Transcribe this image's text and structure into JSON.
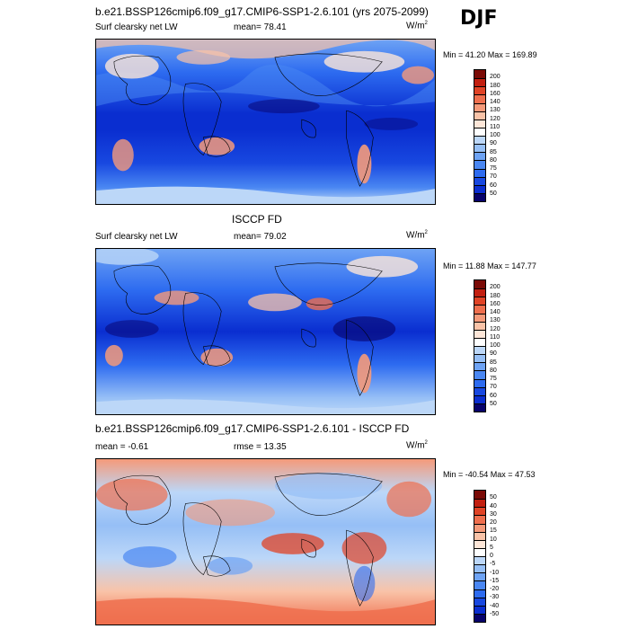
{
  "season": "DJF",
  "colors": {
    "abs_scale": [
      "#07026b",
      "#0a2ed0",
      "#1848e0",
      "#2d6bf0",
      "#4a87f2",
      "#6ea3f4",
      "#96bff6",
      "#bcd7f8",
      "#ffffff",
      "#fde6d8",
      "#f9c3a8",
      "#f59a7a",
      "#ef6f4e",
      "#e04326",
      "#c21f10",
      "#7a0a06"
    ],
    "diff_scale": [
      "#07026b",
      "#0a2ed0",
      "#1848e0",
      "#2d6bf0",
      "#4a87f2",
      "#6ea3f4",
      "#96bff6",
      "#bcd7f8",
      "#ffffff",
      "#fde6d8",
      "#f9c3a8",
      "#f59a7a",
      "#ef6f4e",
      "#e04326",
      "#c21f10",
      "#7a0a06"
    ]
  },
  "panels": [
    {
      "title": "b.e21.BSSP126cmip6.f09_g17.CMIP6-SSP1-2.6.101 (yrs 2075-2099)",
      "left": "Surf clearsky net LW",
      "center": "mean=  78.41",
      "units": "W/m",
      "units_sup": "2",
      "minmax": "Min =  41.20 Max = 169.89",
      "ticks": [
        "200",
        "180",
        "160",
        "140",
        "130",
        "120",
        "110",
        "100",
        "90",
        "85",
        "80",
        "75",
        "70",
        "60",
        "50"
      ],
      "map_style": "abs_a"
    },
    {
      "title": "ISCCP FD",
      "left": "Surf clearsky net LW",
      "center": "mean=  79.02",
      "units": "W/m",
      "units_sup": "2",
      "minmax": "Min =  11.88 Max = 147.77",
      "ticks": [
        "200",
        "180",
        "160",
        "140",
        "130",
        "120",
        "110",
        "100",
        "90",
        "85",
        "80",
        "75",
        "70",
        "60",
        "50"
      ],
      "map_style": "abs_b"
    },
    {
      "title": "b.e21.BSSP126cmip6.f09_g17.CMIP6-SSP1-2.6.101 - ISCCP FD",
      "left": "mean =  -0.61",
      "center": "rmse =  13.35",
      "units": "W/m",
      "units_sup": "2",
      "minmax": "Min = -40.54 Max =  47.53",
      "ticks": [
        "50",
        "40",
        "30",
        "20",
        "15",
        "10",
        "5",
        "0",
        "-5",
        "-10",
        "-15",
        "-20",
        "-30",
        "-40",
        "-50"
      ],
      "map_style": "diff"
    }
  ]
}
